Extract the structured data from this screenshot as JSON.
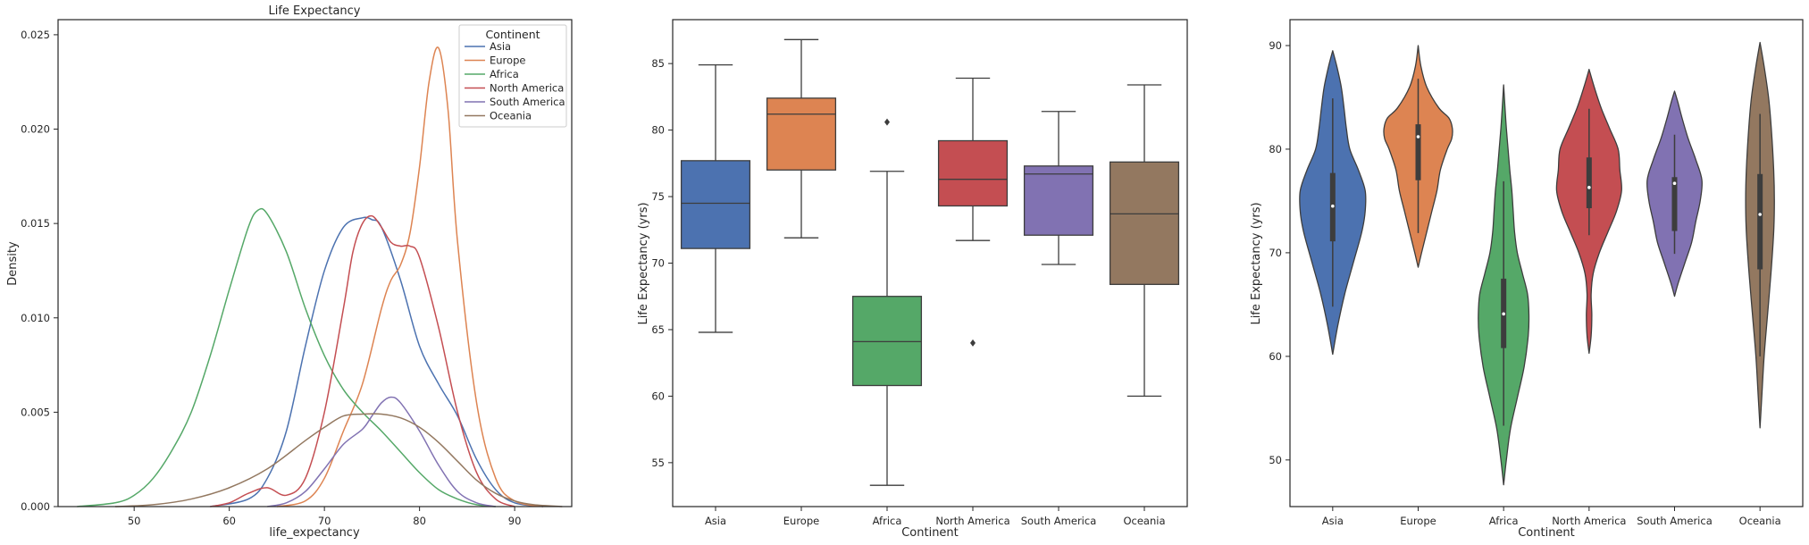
{
  "chart_data": [
    {
      "type": "line",
      "subtype": "kde",
      "title": "Life Expectancy",
      "xlabel": "life_expectancy",
      "ylabel": "Density",
      "xlim": [
        42,
        96
      ],
      "ylim": [
        0,
        0.0258
      ],
      "xticks": [
        50,
        60,
        70,
        80,
        90
      ],
      "yticks": [
        0.0,
        0.005,
        0.01,
        0.015,
        0.02,
        0.025
      ],
      "ytick_labels": [
        "0.000",
        "0.005",
        "0.010",
        "0.015",
        "0.020",
        "0.025"
      ],
      "legend": {
        "title": "Continent",
        "position": "top-right"
      },
      "series": [
        {
          "name": "Asia",
          "color": "#4c72b0",
          "x": [
            58,
            62,
            64,
            66,
            68,
            70,
            72,
            74,
            75,
            76,
            78,
            80,
            82,
            84,
            86,
            88,
            90,
            93
          ],
          "y": [
            0,
            0.0004,
            0.0015,
            0.004,
            0.0085,
            0.0125,
            0.0148,
            0.0153,
            0.0152,
            0.0148,
            0.012,
            0.0085,
            0.0065,
            0.0048,
            0.0025,
            0.0009,
            0.0002,
            0
          ]
        },
        {
          "name": "Europe",
          "color": "#dd8452",
          "x": [
            65,
            68,
            70,
            72,
            74,
            76,
            77,
            78,
            79,
            80,
            81,
            82,
            83,
            84,
            86,
            88,
            90,
            93
          ],
          "y": [
            0,
            0.0003,
            0.0015,
            0.004,
            0.0065,
            0.0105,
            0.012,
            0.0128,
            0.0145,
            0.018,
            0.0225,
            0.0243,
            0.021,
            0.014,
            0.0055,
            0.0015,
            0.0003,
            0
          ]
        },
        {
          "name": "Africa",
          "color": "#55a868",
          "x": [
            44,
            48,
            50,
            52,
            54,
            56,
            58,
            60,
            62,
            63,
            64,
            66,
            68,
            70,
            72,
            74,
            76,
            78,
            80,
            82,
            84,
            86,
            88
          ],
          "y": [
            0,
            0.0002,
            0.0006,
            0.0015,
            0.003,
            0.005,
            0.008,
            0.0115,
            0.0148,
            0.0157,
            0.0155,
            0.0135,
            0.0105,
            0.008,
            0.0062,
            0.005,
            0.004,
            0.0029,
            0.0018,
            0.0009,
            0.0004,
            0.0001,
            0
          ]
        },
        {
          "name": "North America",
          "color": "#c44e52",
          "x": [
            58,
            60,
            62,
            64,
            66,
            68,
            70,
            72,
            73,
            74,
            75,
            76,
            77,
            78,
            79,
            80,
            82,
            84,
            86,
            88,
            90
          ],
          "y": [
            0,
            0.0002,
            0.0007,
            0.001,
            0.0006,
            0.0015,
            0.005,
            0.0105,
            0.0135,
            0.015,
            0.0154,
            0.0148,
            0.014,
            0.0138,
            0.0138,
            0.0132,
            0.0095,
            0.005,
            0.0018,
            0.0004,
            0
          ]
        },
        {
          "name": "South America",
          "color": "#8172b2",
          "x": [
            64,
            66,
            68,
            70,
            72,
            74,
            75,
            76,
            77,
            78,
            80,
            82,
            84,
            86,
            88
          ],
          "y": [
            0,
            0.0002,
            0.0008,
            0.002,
            0.0033,
            0.0041,
            0.0048,
            0.0055,
            0.0058,
            0.0055,
            0.004,
            0.0022,
            0.0008,
            0.0002,
            0
          ]
        },
        {
          "name": "Oceania",
          "color": "#937860",
          "x": [
            48,
            52,
            56,
            60,
            64,
            68,
            70,
            72,
            74,
            76,
            78,
            80,
            82,
            84,
            86,
            88,
            90,
            92,
            95
          ],
          "y": [
            0,
            0.0001,
            0.0004,
            0.001,
            0.002,
            0.0035,
            0.0042,
            0.0048,
            0.0049,
            0.0049,
            0.0047,
            0.0042,
            0.0034,
            0.0024,
            0.0014,
            0.0007,
            0.0003,
            0.0001,
            0
          ]
        }
      ]
    },
    {
      "type": "box",
      "xlabel": "Continent",
      "ylabel": "Life Expectancy (yrs)",
      "ylim": [
        51.7,
        88.3
      ],
      "yticks": [
        55,
        60,
        65,
        70,
        75,
        80,
        85
      ],
      "categories": [
        "Asia",
        "Europe",
        "Africa",
        "North America",
        "South America",
        "Oceania"
      ],
      "colors": [
        "#4c72b0",
        "#dd8452",
        "#55a868",
        "#c44e52",
        "#8172b2",
        "#937860"
      ],
      "boxes": [
        {
          "whislo": 64.8,
          "q1": 71.1,
          "med": 74.5,
          "q3": 77.7,
          "whishi": 84.9,
          "fliers": []
        },
        {
          "whislo": 71.9,
          "q1": 77.0,
          "med": 81.2,
          "q3": 82.4,
          "whishi": 86.8,
          "fliers": []
        },
        {
          "whislo": 53.3,
          "q1": 60.8,
          "med": 64.1,
          "q3": 67.5,
          "whishi": 76.9,
          "fliers": [
            80.6
          ]
        },
        {
          "whislo": 71.7,
          "q1": 74.3,
          "med": 76.3,
          "q3": 79.2,
          "whishi": 83.9,
          "fliers": [
            64.0
          ]
        },
        {
          "whislo": 69.9,
          "q1": 72.1,
          "med": 76.7,
          "q3": 77.3,
          "whishi": 81.4,
          "fliers": []
        },
        {
          "whislo": 60.0,
          "q1": 68.4,
          "med": 73.7,
          "q3": 77.6,
          "whishi": 83.4,
          "fliers": []
        }
      ]
    },
    {
      "type": "violin",
      "xlabel": "Continent",
      "ylabel": "Life Expectancy (yrs)",
      "ylim": [
        45.5,
        92.5
      ],
      "yticks": [
        50,
        60,
        70,
        80,
        90
      ],
      "categories": [
        "Asia",
        "Europe",
        "Africa",
        "North America",
        "South America",
        "Oceania"
      ],
      "colors": [
        "#4c72b0",
        "#dd8452",
        "#55a868",
        "#c44e52",
        "#8172b2",
        "#937860"
      ],
      "violins": [
        {
          "range": [
            60.2,
            89.5
          ],
          "q1": 71.1,
          "med": 74.5,
          "q3": 77.7,
          "whislo": 64.8,
          "whishi": 84.9,
          "profile": [
            [
              60.2,
              0
            ],
            [
              63,
              0.15
            ],
            [
              66,
              0.35
            ],
            [
              69,
              0.6
            ],
            [
              72,
              0.85
            ],
            [
              74,
              0.95
            ],
            [
              76,
              0.95
            ],
            [
              78,
              0.75
            ],
            [
              80,
              0.5
            ],
            [
              82,
              0.4
            ],
            [
              84,
              0.33
            ],
            [
              86,
              0.25
            ],
            [
              88,
              0.12
            ],
            [
              89.5,
              0
            ]
          ]
        },
        {
          "range": [
            68.6,
            90.0
          ],
          "q1": 77.0,
          "med": 81.2,
          "q3": 82.4,
          "whislo": 71.9,
          "whishi": 86.8,
          "profile": [
            [
              68.6,
              0
            ],
            [
              70,
              0.1
            ],
            [
              72,
              0.25
            ],
            [
              74,
              0.4
            ],
            [
              76,
              0.55
            ],
            [
              78,
              0.65
            ],
            [
              80,
              0.85
            ],
            [
              81,
              0.98
            ],
            [
              82,
              1.0
            ],
            [
              83,
              0.9
            ],
            [
              84,
              0.6
            ],
            [
              86,
              0.25
            ],
            [
              88,
              0.08
            ],
            [
              90,
              0
            ]
          ]
        },
        {
          "range": [
            47.6,
            86.2
          ],
          "q1": 60.8,
          "med": 64.1,
          "q3": 67.5,
          "whislo": 53.3,
          "whishi": 76.9,
          "profile": [
            [
              47.6,
              0
            ],
            [
              50,
              0.08
            ],
            [
              53,
              0.2
            ],
            [
              56,
              0.4
            ],
            [
              59,
              0.6
            ],
            [
              62,
              0.72
            ],
            [
              64,
              0.74
            ],
            [
              66,
              0.7
            ],
            [
              68,
              0.55
            ],
            [
              70,
              0.4
            ],
            [
              72,
              0.32
            ],
            [
              74,
              0.28
            ],
            [
              76,
              0.24
            ],
            [
              78,
              0.18
            ],
            [
              80,
              0.13
            ],
            [
              82,
              0.08
            ],
            [
              84,
              0.04
            ],
            [
              86.2,
              0
            ]
          ]
        },
        {
          "range": [
            60.3,
            87.7
          ],
          "q1": 74.3,
          "med": 76.3,
          "q3": 79.2,
          "whislo": 71.7,
          "whishi": 83.9,
          "profile": [
            [
              60.3,
              0
            ],
            [
              62,
              0.06
            ],
            [
              64,
              0.08
            ],
            [
              66,
              0.06
            ],
            [
              68,
              0.12
            ],
            [
              70,
              0.3
            ],
            [
              72,
              0.55
            ],
            [
              74,
              0.8
            ],
            [
              76,
              0.95
            ],
            [
              78,
              0.9
            ],
            [
              80,
              0.85
            ],
            [
              82,
              0.6
            ],
            [
              84,
              0.35
            ],
            [
              86,
              0.15
            ],
            [
              87.7,
              0
            ]
          ]
        },
        {
          "range": [
            65.8,
            85.6
          ],
          "q1": 72.1,
          "med": 76.7,
          "q3": 77.3,
          "whislo": 69.9,
          "whishi": 81.4,
          "profile": [
            [
              65.8,
              0
            ],
            [
              67,
              0.1
            ],
            [
              69,
              0.3
            ],
            [
              71,
              0.5
            ],
            [
              73,
              0.62
            ],
            [
              75,
              0.75
            ],
            [
              77,
              0.8
            ],
            [
              79,
              0.62
            ],
            [
              81,
              0.4
            ],
            [
              83,
              0.22
            ],
            [
              84.5,
              0.1
            ],
            [
              85.6,
              0
            ]
          ]
        },
        {
          "range": [
            53.1,
            90.3
          ],
          "q1": 68.4,
          "med": 73.7,
          "q3": 77.6,
          "whislo": 60.0,
          "whishi": 83.4,
          "profile": [
            [
              53.1,
              0
            ],
            [
              56,
              0.05
            ],
            [
              60,
              0.12
            ],
            [
              64,
              0.22
            ],
            [
              68,
              0.32
            ],
            [
              72,
              0.4
            ],
            [
              75,
              0.42
            ],
            [
              78,
              0.4
            ],
            [
              82,
              0.33
            ],
            [
              85,
              0.25
            ],
            [
              88,
              0.12
            ],
            [
              90.3,
              0
            ]
          ]
        }
      ]
    }
  ]
}
